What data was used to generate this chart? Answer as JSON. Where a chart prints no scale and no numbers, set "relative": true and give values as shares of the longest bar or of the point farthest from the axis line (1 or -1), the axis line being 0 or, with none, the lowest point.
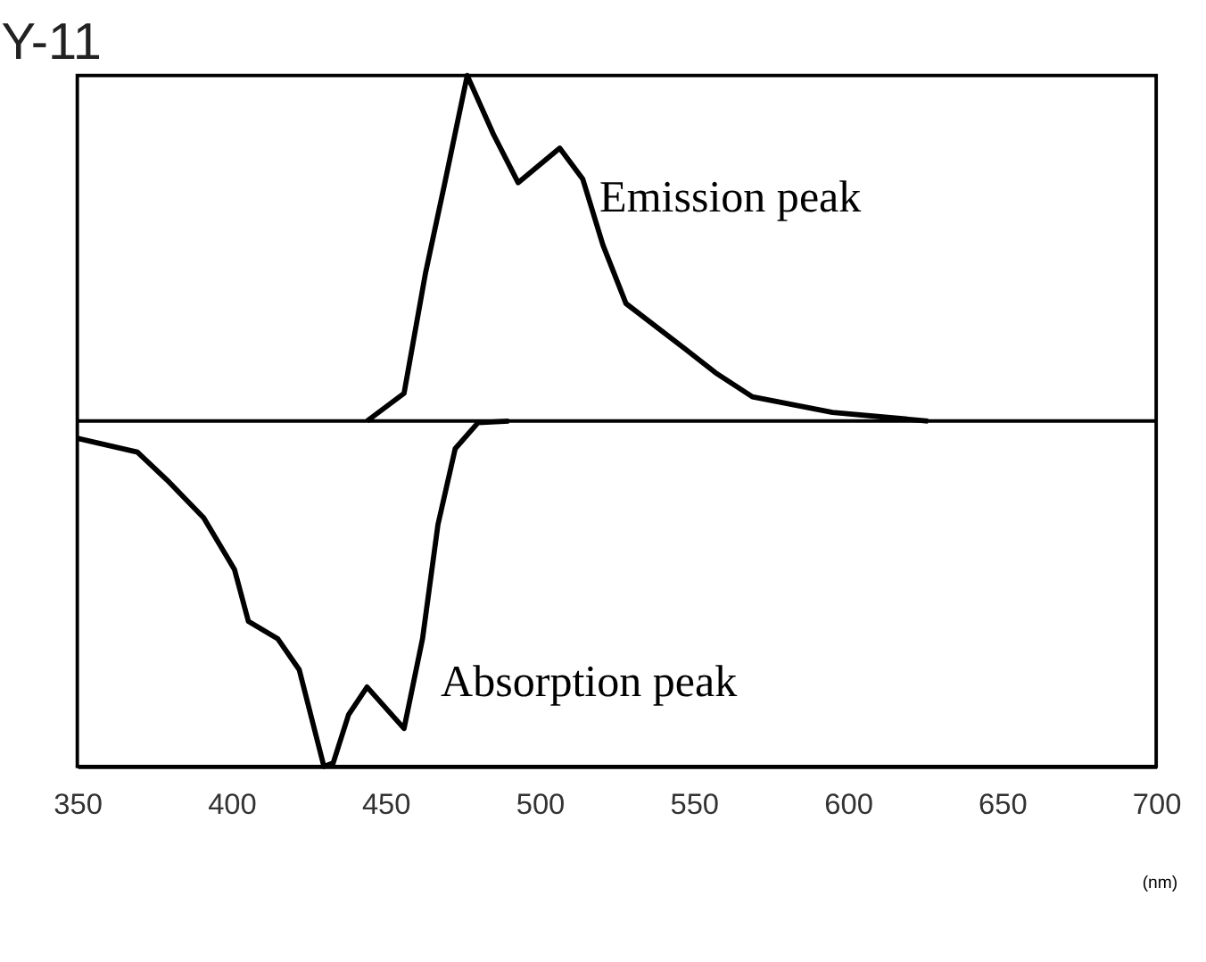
{
  "chart_data": {
    "type": "line",
    "title": "Y-11",
    "xlabel": "(nm)",
    "relative": true,
    "xlim": [
      350,
      700
    ],
    "xticks": [
      350,
      400,
      450,
      500,
      550,
      600,
      650,
      700
    ],
    "grid": false,
    "marker": "none",
    "line_style": "solid",
    "series": [
      {
        "name": "Emission peak",
        "color": "#000000",
        "x": [
          444,
          456,
          463,
          469,
          476.5,
          485,
          493,
          506.5,
          514,
          520.5,
          528,
          547,
          557,
          569,
          595,
          626
        ],
        "values": [
          0,
          0.08,
          0.43,
          0.68,
          1.0,
          0.83,
          0.69,
          0.79,
          0.7,
          0.51,
          0.34,
          0.21,
          0.14,
          0.07,
          0.025,
          0
        ]
      },
      {
        "name": "Absorption peak",
        "color": "#000000",
        "x": [
          350,
          369.5,
          379,
          391,
          401,
          405.5,
          415,
          422,
          430,
          433,
          438,
          444,
          450,
          456,
          462,
          467,
          472.6,
          480,
          490
        ],
        "values": [
          -0.05,
          -0.09,
          -0.17,
          -0.28,
          -0.43,
          -0.58,
          -0.63,
          -0.72,
          -1.0,
          -0.99,
          -0.85,
          -0.77,
          -0.83,
          -0.89,
          -0.63,
          -0.3,
          -0.08,
          -0.005,
          0
        ]
      }
    ]
  }
}
